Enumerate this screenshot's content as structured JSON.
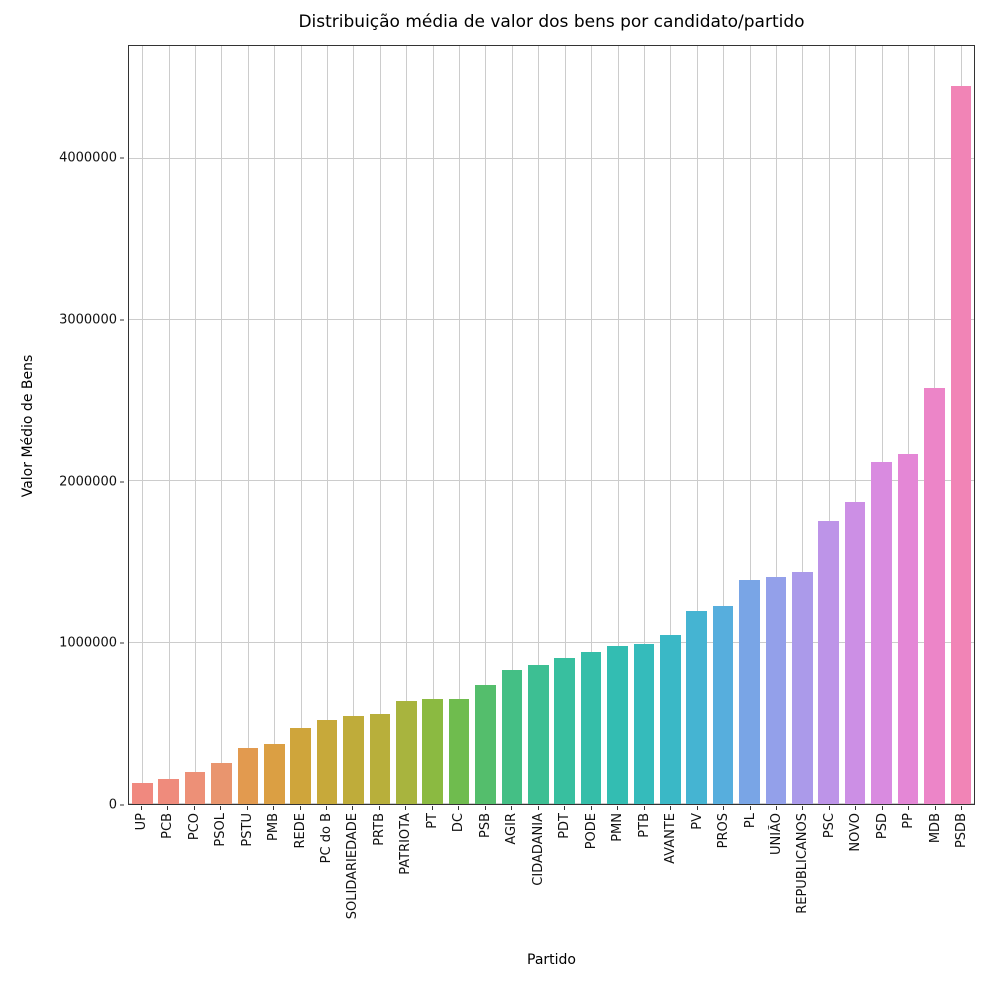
{
  "figure": {
    "title": "Distribuição média de valor dos bens por candidato/partido",
    "xlabel": "Partido",
    "ylabel": "Valor Médio de Bens"
  },
  "chart_data": {
    "type": "bar",
    "title": "Distribuição média de valor dos bens por candidato/partido",
    "xlabel": "Partido",
    "ylabel": "Valor Médio de Bens",
    "categories": [
      "UP",
      "PCB",
      "PCO",
      "PSOL",
      "PSTU",
      "PMB",
      "REDE",
      "PC do B",
      "SOLIDARIEDADE",
      "PRTB",
      "PATRIOTA",
      "PT",
      "DC",
      "PSB",
      "AGIR",
      "CIDADANIA",
      "PDT",
      "PODE",
      "PMN",
      "PTB",
      "AVANTE",
      "PV",
      "PROS",
      "PL",
      "UNIÃO",
      "REPUBLICANOS",
      "PSC",
      "NOVO",
      "PSD",
      "PP",
      "MDB",
      "PSDB"
    ],
    "values": [
      130000,
      155000,
      200000,
      255000,
      345000,
      370000,
      470000,
      520000,
      545000,
      560000,
      640000,
      650000,
      650000,
      740000,
      830000,
      860000,
      905000,
      940000,
      980000,
      995000,
      1050000,
      1195000,
      1225000,
      1390000,
      1405000,
      1440000,
      1755000,
      1870000,
      2120000,
      2170000,
      2580000,
      4450000
    ],
    "bar_colors": [
      "#F0897F",
      "#EF8B7C",
      "#ED9077",
      "#E9956E",
      "#E29A4F",
      "#DB9F43",
      "#CFA53B",
      "#C7A93A",
      "#BFAC3A",
      "#B8AF3B",
      "#A8B43E",
      "#8BBA41",
      "#6FBC4E",
      "#54BE6C",
      "#44BF85",
      "#3DBF93",
      "#38BF9F",
      "#35BEA9",
      "#33BDB2",
      "#35BBBB",
      "#3AB8C6",
      "#45B4D2",
      "#57AEDD",
      "#79A5E6",
      "#93A0EA",
      "#AB9AEA",
      "#BD94E8",
      "#CC8FE5",
      "#D98BE0",
      "#E487D6",
      "#EC85C8",
      "#F184B6"
    ],
    "ylim": [
      0,
      4700000
    ],
    "yticks": [
      0,
      1000000,
      2000000,
      3000000,
      4000000
    ],
    "ytick_labels": [
      "0",
      "1000000",
      "2000000",
      "3000000",
      "4000000"
    ],
    "grid": true,
    "legend": "none"
  }
}
